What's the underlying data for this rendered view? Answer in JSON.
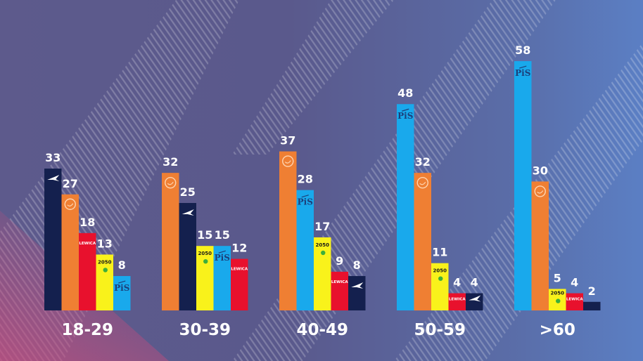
{
  "chart_data": {
    "type": "bar",
    "categories": [
      "18-29",
      "30-39",
      "40-49",
      "50-59",
      ">60"
    ],
    "groups": [
      {
        "category": "18-29",
        "bars": [
          {
            "party": "Konfederacja",
            "value": 33
          },
          {
            "party": "KO",
            "value": 27
          },
          {
            "party": "Lewica",
            "value": 18
          },
          {
            "party": "Polska 2050",
            "value": 13
          },
          {
            "party": "PiS",
            "value": 8
          }
        ]
      },
      {
        "category": "30-39",
        "bars": [
          {
            "party": "KO",
            "value": 32
          },
          {
            "party": "Konfederacja",
            "value": 25
          },
          {
            "party": "Polska 2050",
            "value": 15
          },
          {
            "party": "PiS",
            "value": 15
          },
          {
            "party": "Lewica",
            "value": 12
          }
        ]
      },
      {
        "category": "40-49",
        "bars": [
          {
            "party": "KO",
            "value": 37
          },
          {
            "party": "PiS",
            "value": 28
          },
          {
            "party": "Polska 2050",
            "value": 17
          },
          {
            "party": "Lewica",
            "value": 9
          },
          {
            "party": "Konfederacja",
            "value": 8
          }
        ]
      },
      {
        "category": "50-59",
        "bars": [
          {
            "party": "PiS",
            "value": 48
          },
          {
            "party": "KO",
            "value": 32
          },
          {
            "party": "Polska 2050",
            "value": 11
          },
          {
            "party": "Lewica",
            "value": 4
          },
          {
            "party": "Konfederacja",
            "value": 4
          }
        ]
      },
      {
        "category": ">60",
        "bars": [
          {
            "party": "PiS",
            "value": 58
          },
          {
            "party": "KO",
            "value": 30
          },
          {
            "party": "Polska 2050",
            "value": 5
          },
          {
            "party": "Lewica",
            "value": 4
          },
          {
            "party": "Konfederacja",
            "value": 2
          }
        ]
      }
    ],
    "party_colors": {
      "Konfederacja": "#14204e",
      "KO": "#ef7f33",
      "Lewica": "#e8112d",
      "Polska 2050": "#f9f21b",
      "PiS": "#19a9ec"
    },
    "logo_text": {
      "Lewica": "LEWICA",
      "Polska 2050": "2050",
      "PiS": "PiS"
    },
    "ylim": [
      0,
      60
    ],
    "grid": false,
    "legend": "none",
    "value_labels": true
  }
}
